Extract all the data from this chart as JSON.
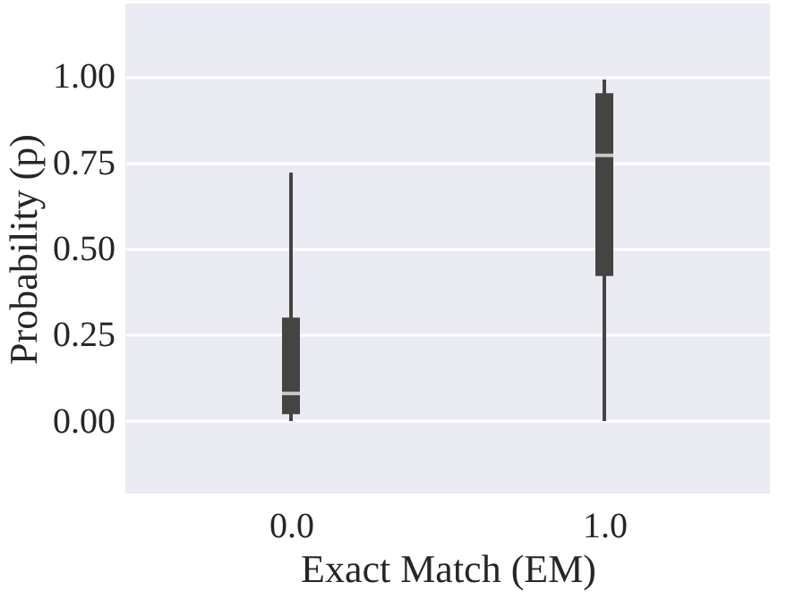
{
  "chart_data": {
    "type": "box",
    "xlabel": "Exact Match (EM)",
    "ylabel": "Probability (p)",
    "categories": [
      "0.0",
      "1.0"
    ],
    "boxes": [
      {
        "low": 0.0,
        "q1": 0.02,
        "median": 0.08,
        "q3": 0.3,
        "high": 0.72
      },
      {
        "low": 0.0,
        "q1": 0.42,
        "median": 0.77,
        "q3": 0.95,
        "high": 0.99
      }
    ],
    "color": "#444444",
    "ylim": [
      -0.21,
      1.21
    ],
    "yticks": [
      {
        "value": 0,
        "label": "0.00"
      },
      {
        "value": 0.25,
        "label": "0.25"
      },
      {
        "value": 0.5,
        "label": "0.50"
      },
      {
        "value": 0.75,
        "label": "0.75"
      },
      {
        "value": 1,
        "label": "1.00"
      }
    ],
    "grid": "y"
  }
}
